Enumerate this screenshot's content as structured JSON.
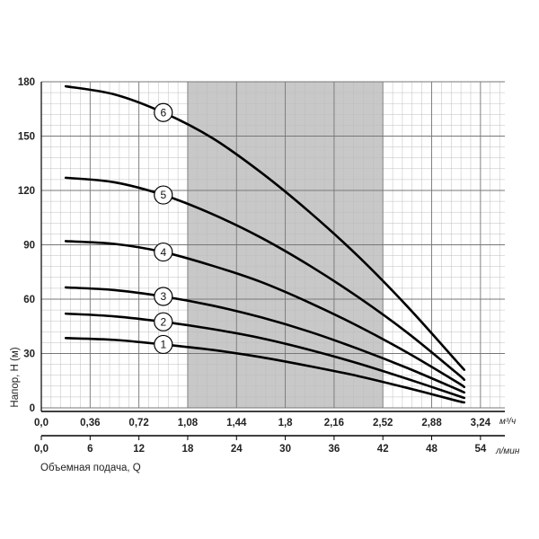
{
  "chart_data": {
    "type": "line",
    "ylabel": "Напор, H (м)",
    "xlabel": "Объемная подача, Q",
    "x_units": [
      "м³/ч",
      "л/мин"
    ],
    "ylim": [
      0,
      180
    ],
    "yticks": [
      "0",
      "30",
      "60",
      "90",
      "120",
      "150",
      "180"
    ],
    "x_m3h_ticks": [
      "0,0",
      "0,36",
      "0,72",
      "1,08",
      "1,44",
      "1,8",
      "2,16",
      "2,52",
      "2,88",
      "3,24"
    ],
    "x_lmin_ticks": [
      "0,0",
      "6",
      "12",
      "18",
      "24",
      "30",
      "36",
      "42",
      "48",
      "54"
    ],
    "xlim_m3h": [
      0,
      3.42
    ],
    "grid": true,
    "shaded_region_m3h": [
      1.08,
      2.52
    ],
    "series": [
      {
        "name": "1",
        "x": [
          0.18,
          0.54,
          0.9,
          1.26,
          1.62,
          1.98,
          2.34,
          2.7,
          3.06,
          3.12
        ],
        "y": [
          38.5,
          37.5,
          35,
          32,
          28,
          23,
          17.5,
          11,
          4,
          3
        ]
      },
      {
        "name": "2",
        "x": [
          0.18,
          0.54,
          0.9,
          1.26,
          1.62,
          1.98,
          2.34,
          2.7,
          3.06,
          3.12
        ],
        "y": [
          52,
          50.5,
          47.5,
          43.5,
          38.5,
          32,
          24.5,
          16,
          7,
          5.5
        ]
      },
      {
        "name": "3",
        "x": [
          0.18,
          0.54,
          0.9,
          1.26,
          1.62,
          1.98,
          2.34,
          2.7,
          3.06,
          3.12
        ],
        "y": [
          66.5,
          65,
          61.5,
          56.5,
          50,
          42,
          32.5,
          22,
          10.5,
          8.5
        ]
      },
      {
        "name": "4",
        "x": [
          0.18,
          0.54,
          0.9,
          1.26,
          1.62,
          1.98,
          2.34,
          2.7,
          3.06,
          3.12
        ],
        "y": [
          92,
          90.5,
          86,
          78.5,
          69.5,
          58,
          45,
          30.5,
          14.5,
          11.5
        ]
      },
      {
        "name": "5",
        "x": [
          0.18,
          0.54,
          0.9,
          1.26,
          1.62,
          1.98,
          2.34,
          2.7,
          3.06,
          3.12
        ],
        "y": [
          127,
          124.5,
          117.5,
          107,
          94,
          78.5,
          61,
          41.5,
          19.5,
          15.5
        ]
      },
      {
        "name": "6",
        "x": [
          0.18,
          0.54,
          0.9,
          1.26,
          1.62,
          1.98,
          2.34,
          2.7,
          3.06,
          3.12
        ],
        "y": [
          177.5,
          173,
          163,
          149,
          130,
          108,
          83.5,
          56,
          26,
          21
        ]
      }
    ],
    "label_positions_m3h": [
      0.9,
      0.9,
      0.9,
      0.9,
      0.9,
      0.9
    ]
  }
}
